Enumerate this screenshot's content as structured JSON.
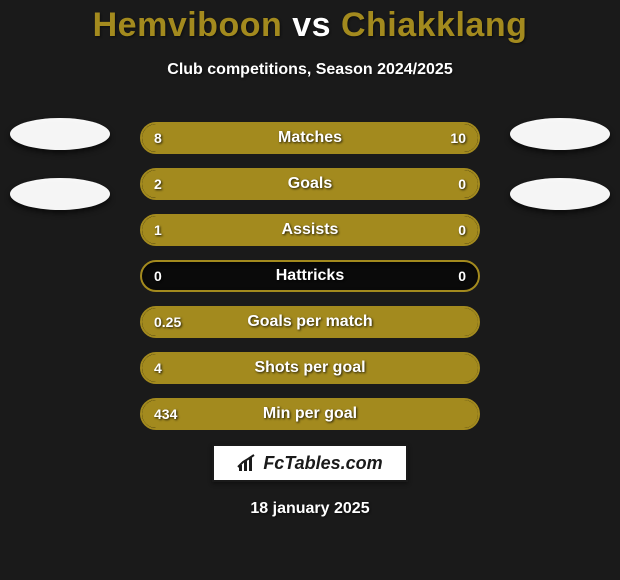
{
  "title": {
    "left_name": "Hemviboon",
    "vs": " vs ",
    "right_name": "Chiakklang",
    "left_color": "#a38a1e",
    "right_color": "#a38a1e"
  },
  "subtitle": "Club competitions, Season 2024/2025",
  "background_color": "#1a1a1a",
  "bar_border_color": "#a38a1e",
  "pill_left_color": "#f5f5f5",
  "pill_right_color": "#f5f5f5",
  "side_pill_count": 2,
  "stats": [
    {
      "label": "Matches",
      "left_val": "8",
      "right_val": "10",
      "left_pct": 44,
      "right_pct": 56,
      "left_color": "#a38a1e",
      "right_color": "#a38a1e"
    },
    {
      "label": "Goals",
      "left_val": "2",
      "right_val": "0",
      "left_pct": 78,
      "right_pct": 22,
      "left_color": "#a38a1e",
      "right_color": "#a38a1e"
    },
    {
      "label": "Assists",
      "left_val": "1",
      "right_val": "0",
      "left_pct": 78,
      "right_pct": 22,
      "left_color": "#a38a1e",
      "right_color": "#a38a1e"
    },
    {
      "label": "Hattricks",
      "left_val": "0",
      "right_val": "0",
      "left_pct": 0,
      "right_pct": 0,
      "left_color": "#a38a1e",
      "right_color": "#a38a1e"
    },
    {
      "label": "Goals per match",
      "left_val": "0.25",
      "right_val": "",
      "left_pct": 100,
      "right_pct": 0,
      "left_color": "#a38a1e",
      "right_color": "#a38a1e"
    },
    {
      "label": "Shots per goal",
      "left_val": "4",
      "right_val": "",
      "left_pct": 100,
      "right_pct": 0,
      "left_color": "#a38a1e",
      "right_color": "#a38a1e"
    },
    {
      "label": "Min per goal",
      "left_val": "434",
      "right_val": "",
      "left_pct": 100,
      "right_pct": 0,
      "left_color": "#a38a1e",
      "right_color": "#a38a1e"
    }
  ],
  "watermark": {
    "text": "FcTables.com",
    "icon": "chart-line-icon"
  },
  "date": "18 january 2025"
}
